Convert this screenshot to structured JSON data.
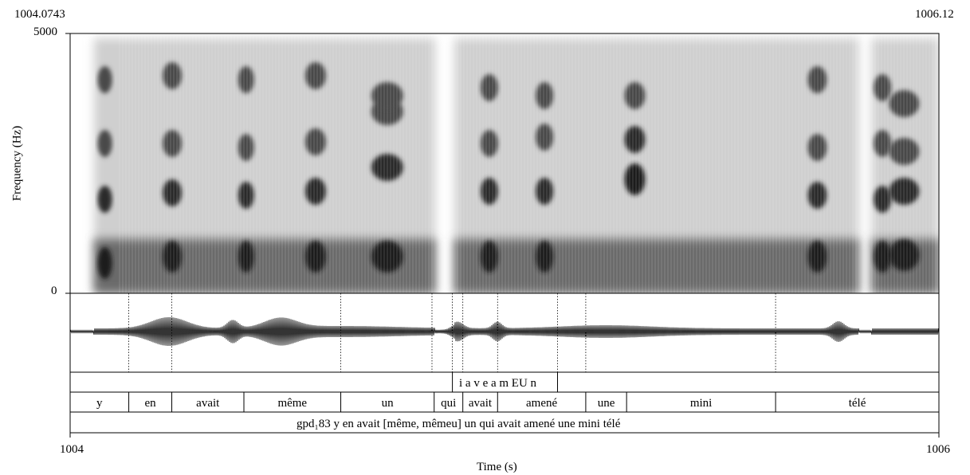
{
  "header": {
    "left_time": "1004.0743",
    "right_time": "1006.12"
  },
  "yaxis": {
    "label": "Frequency (Hz)",
    "top_tick": "5000",
    "bottom_tick": "0"
  },
  "xaxis": {
    "label": "Time (s)",
    "left_tick": "1004",
    "right_tick": "1006"
  },
  "tiers": {
    "phones": "i a v e a m EU n",
    "words": [
      "y",
      "en",
      "avait",
      "même",
      "un",
      "qui",
      "avait",
      "amené",
      "une",
      "mini",
      "télé"
    ],
    "utterance": "gpd₁83 y en avait [même, mêmeu] un qui avait amené une mini télé"
  },
  "chart_data": {
    "type": "spectrogram",
    "time_range_s": [
      1004,
      1006
    ],
    "frequency_range_hz": [
      0,
      5000
    ],
    "words": [
      {
        "text": "y",
        "start": 1004.0,
        "end": 1004.135
      },
      {
        "text": "en",
        "start": 1004.135,
        "end": 1004.234
      },
      {
        "text": "avait",
        "start": 1004.234,
        "end": 1004.4
      },
      {
        "text": "même",
        "start": 1004.4,
        "end": 1004.623
      },
      {
        "text": "un",
        "start": 1004.623,
        "end": 1004.838
      },
      {
        "text": "qui",
        "start": 1004.838,
        "end": 1004.904
      },
      {
        "text": "avait",
        "start": 1004.904,
        "end": 1004.984
      },
      {
        "text": "amené",
        "start": 1004.984,
        "end": 1005.187
      },
      {
        "text": "une",
        "start": 1005.187,
        "end": 1005.281
      },
      {
        "text": "mini",
        "start": 1005.281,
        "end": 1005.624
      },
      {
        "text": "télé",
        "start": 1005.624,
        "end": 1006.0
      }
    ],
    "phone_interval": {
      "text": "i a v e a m EU n",
      "start": 1004.88,
      "end": 1005.122
    },
    "boundaries_s": [
      1004.135,
      1004.234,
      1004.623,
      1004.833,
      1004.88,
      1004.904,
      1004.984,
      1005.122,
      1005.187,
      1005.624
    ]
  }
}
